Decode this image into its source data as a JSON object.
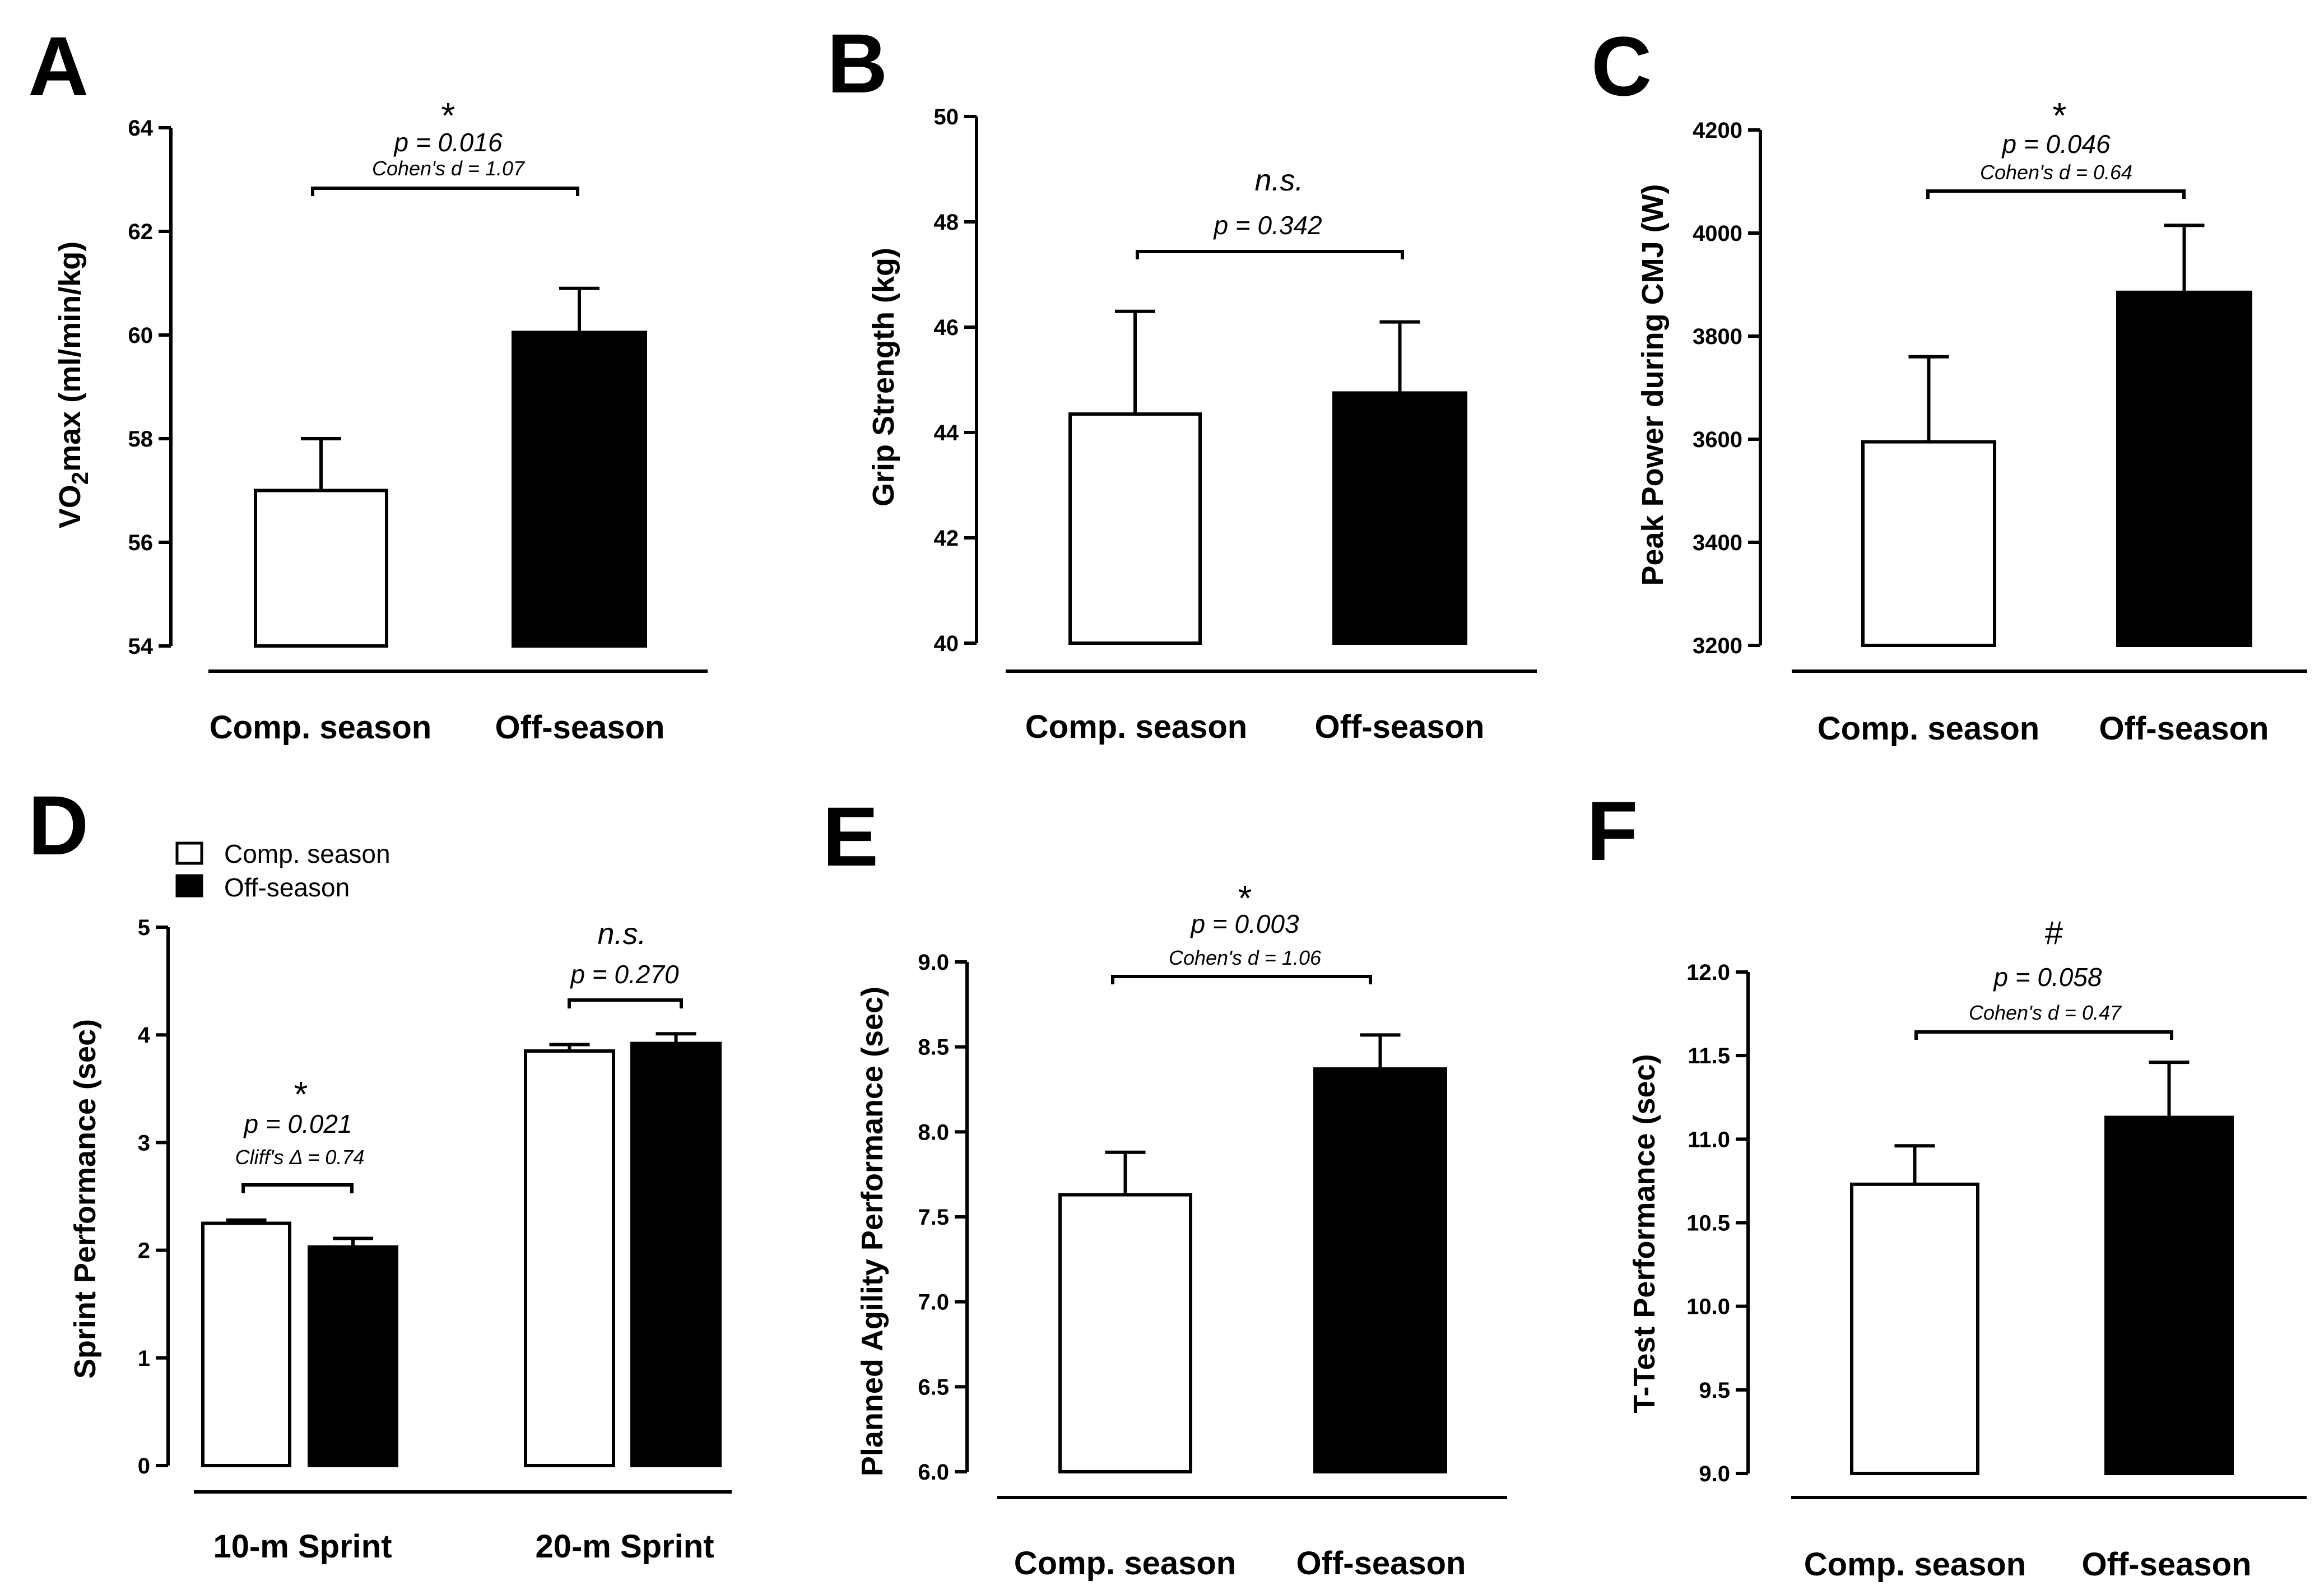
{
  "chart_data": [
    {
      "panel": "A",
      "type": "bar",
      "ylabel_main": "VO",
      "ylabel_sub": "2",
      "ylabel_rest": "max (ml/min/kg)",
      "ylim": [
        54,
        64
      ],
      "yticks": [
        "54",
        "56",
        "58",
        "60",
        "62",
        "64"
      ],
      "categories": [
        "Comp. season",
        "Off-season"
      ],
      "values": [
        57.0,
        60.05
      ],
      "errors": [
        1.0,
        0.85
      ],
      "fills": [
        "#ffffff",
        "#000000"
      ],
      "annotation": {
        "symbol": "*",
        "p": "p = 0.016",
        "effect": "Cohen's d = 1.07"
      }
    },
    {
      "panel": "B",
      "type": "bar",
      "ylabel": "Grip Strength (kg)",
      "ylim": [
        40,
        50
      ],
      "yticks": [
        "40",
        "42",
        "44",
        "46",
        "48",
        "50"
      ],
      "categories": [
        "Comp. season",
        "Off-season"
      ],
      "values": [
        44.35,
        44.75
      ],
      "errors": [
        1.95,
        1.35
      ],
      "fills": [
        "#ffffff",
        "#000000"
      ],
      "annotation": {
        "symbol": "n.s.",
        "p": "p = 0.342"
      }
    },
    {
      "panel": "C",
      "type": "bar",
      "ylabel": "Peak Power during CMJ (W)",
      "ylim": [
        3200,
        4200
      ],
      "yticks": [
        "3200",
        "3400",
        "3600",
        "3800",
        "4000",
        "4200"
      ],
      "categories": [
        "Comp. season",
        "Off-season"
      ],
      "values": [
        3595,
        3885
      ],
      "errors": [
        165,
        130
      ],
      "fills": [
        "#ffffff",
        "#000000"
      ],
      "annotation": {
        "symbol": "*",
        "p": "p = 0.046",
        "effect": "Cohen's d = 0.64"
      }
    },
    {
      "panel": "D",
      "type": "bar",
      "ylabel": "Sprint Performance (sec)",
      "ylim": [
        0,
        5
      ],
      "yticks": [
        "0",
        "1",
        "2",
        "3",
        "4",
        "5"
      ],
      "categories": [
        "10-m Sprint",
        "20-m Sprint"
      ],
      "legend": [
        "Comp. season",
        "Off-season"
      ],
      "series": [
        {
          "name": "Comp. season",
          "values": [
            2.25,
            3.85
          ],
          "errors": [
            0.03,
            0.06
          ],
          "fill": "#ffffff"
        },
        {
          "name": "Off-season",
          "values": [
            2.03,
            3.92
          ],
          "errors": [
            0.08,
            0.09
          ],
          "fill": "#000000"
        }
      ],
      "annotations": [
        {
          "symbol": "*",
          "p": "p = 0.021",
          "effect": "Cliff's Δ = 0.74"
        },
        {
          "symbol": "n.s.",
          "p": "p = 0.270"
        }
      ]
    },
    {
      "panel": "E",
      "type": "bar",
      "ylabel": "Planned Agility Performance (sec)",
      "ylim": [
        6.0,
        9.0
      ],
      "yticks": [
        "6.0",
        "6.5",
        "7.0",
        "7.5",
        "8.0",
        "8.5",
        "9.0"
      ],
      "categories": [
        "Comp. season",
        "Off-season"
      ],
      "values": [
        7.63,
        8.37
      ],
      "errors": [
        0.25,
        0.2
      ],
      "fills": [
        "#ffffff",
        "#000000"
      ],
      "annotation": {
        "symbol": "*",
        "p": "p = 0.003",
        "effect": "Cohen's d = 1.06"
      }
    },
    {
      "panel": "F",
      "type": "bar",
      "ylabel": "T-Test Performance (sec)",
      "ylim": [
        9.0,
        12.0
      ],
      "yticks": [
        "9.0",
        "9.5",
        "10.0",
        "10.5",
        "11.0",
        "11.5",
        "12.0"
      ],
      "categories": [
        "Comp. season",
        "Off-season"
      ],
      "values": [
        10.73,
        11.13
      ],
      "errors": [
        0.23,
        0.33
      ],
      "fills": [
        "#ffffff",
        "#000000"
      ],
      "annotation": {
        "symbol": "#",
        "p": "p = 0.058",
        "effect": "Cohen's d = 0.47"
      }
    }
  ]
}
